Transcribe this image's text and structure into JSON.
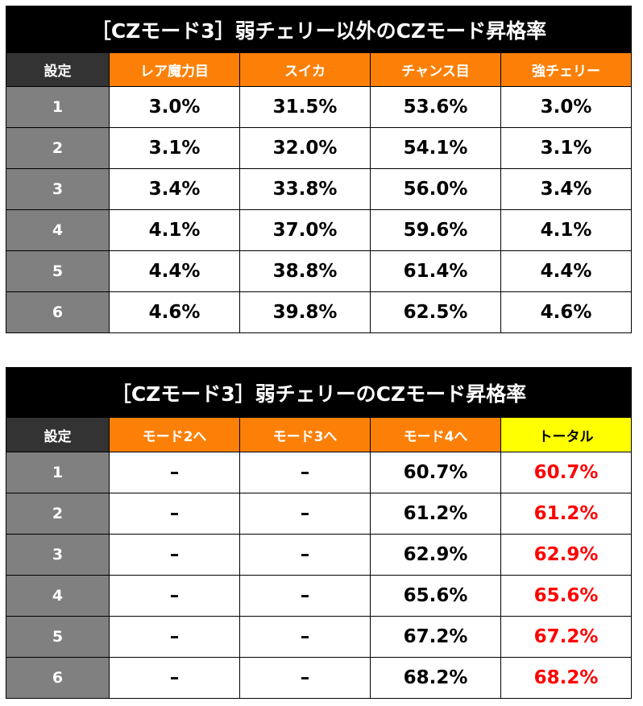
{
  "table1": {
    "title": "［CZモード3］弱チェリー以外のCZモード昇格率",
    "headers": [
      "設定",
      "レア魔力目",
      "スイカ",
      "チャンス目",
      "強チェリー"
    ],
    "rows": [
      [
        "1",
        "3.0%",
        "31.5%",
        "53.6%",
        "3.0%"
      ],
      [
        "2",
        "3.1%",
        "32.0%",
        "54.1%",
        "3.1%"
      ],
      [
        "3",
        "3.4%",
        "33.8%",
        "56.0%",
        "3.4%"
      ],
      [
        "4",
        "4.1%",
        "37.0%",
        "59.6%",
        "4.1%"
      ],
      [
        "5",
        "4.4%",
        "38.8%",
        "61.4%",
        "4.4%"
      ],
      [
        "6",
        "4.6%",
        "39.8%",
        "62.5%",
        "4.6%"
      ]
    ]
  },
  "table2": {
    "title": "［CZモード3］弱チェリーのCZモード昇格率",
    "headers": [
      "設定",
      "モード2へ",
      "モード3へ",
      "モード4へ",
      "トータル"
    ],
    "rows": [
      [
        "1",
        "–",
        "–",
        "60.7%",
        "60.7%"
      ],
      [
        "2",
        "–",
        "–",
        "61.2%",
        "61.2%"
      ],
      [
        "3",
        "–",
        "–",
        "62.9%",
        "62.9%"
      ],
      [
        "4",
        "–",
        "–",
        "65.6%",
        "65.6%"
      ],
      [
        "5",
        "–",
        "–",
        "67.2%",
        "67.2%"
      ],
      [
        "6",
        "–",
        "–",
        "68.2%",
        "68.2%"
      ]
    ]
  },
  "colors": {
    "header_orange": "#fc8008",
    "setting_header": "#333333",
    "setting_cell": "#808080",
    "total_header": "#ffff00",
    "total_text": "#ff0000"
  }
}
